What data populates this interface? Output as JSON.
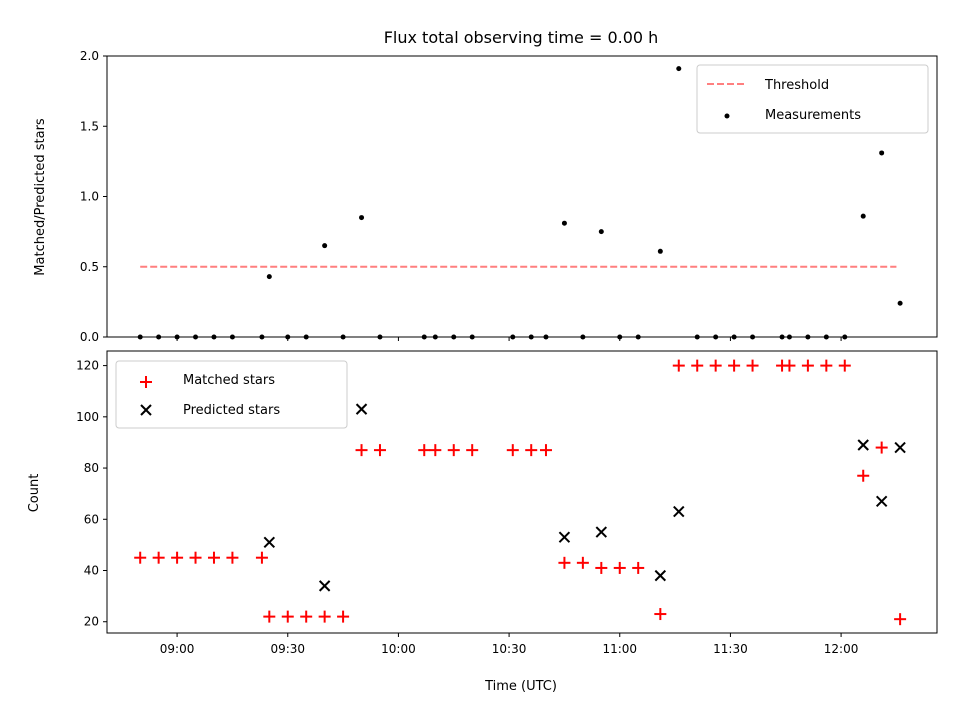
{
  "chart_data": [
    {
      "type": "scatter",
      "title": "Flux total observing time = 0.00 h",
      "xlabel": "",
      "ylabel": "Matched/Predicted stars",
      "ylim": [
        0,
        2.0
      ],
      "yticks": [
        0.0,
        0.5,
        1.0,
        1.5,
        2.0
      ],
      "ytick_labels": [
        "0.0",
        "0.5",
        "1.0",
        "1.5",
        "2.0"
      ],
      "xlim": [
        "08:41",
        "12:26"
      ],
      "xticks": [
        "09:00",
        "09:30",
        "10:00",
        "10:30",
        "11:00",
        "11:30",
        "12:00"
      ],
      "grid": false,
      "legend_position": "top-right",
      "series": [
        {
          "name": "Threshold",
          "kind": "dashed-line",
          "color": "#ff7f7f",
          "x": [
            "08:50",
            "12:15"
          ],
          "y": [
            0.5,
            0.5
          ]
        },
        {
          "name": "Measurements",
          "kind": "points",
          "color": "#000000",
          "x": [
            "08:50",
            "08:55",
            "09:00",
            "09:05",
            "09:10",
            "09:15",
            "09:23",
            "09:25",
            "09:30",
            "09:35",
            "09:40",
            "09:45",
            "09:50",
            "09:55",
            "10:07",
            "10:10",
            "10:15",
            "10:20",
            "10:31",
            "10:36",
            "10:40",
            "10:45",
            "10:50",
            "10:55",
            "11:00",
            "11:05",
            "11:11",
            "11:16",
            "11:21",
            "11:26",
            "11:31",
            "11:36",
            "11:44",
            "11:46",
            "11:51",
            "11:56",
            "12:01",
            "12:06",
            "12:11",
            "12:16"
          ],
          "y": [
            0,
            0,
            0,
            0,
            0,
            0,
            0,
            0.43,
            0,
            0,
            0.65,
            0,
            0.85,
            0,
            0,
            0,
            0,
            0,
            0,
            0,
            0,
            0.81,
            0,
            0.75,
            0,
            0,
            0.61,
            1.91,
            0,
            0,
            0,
            0,
            0,
            0,
            0,
            0,
            0,
            0.86,
            1.31,
            0.24
          ]
        }
      ]
    },
    {
      "type": "scatter",
      "title": "",
      "xlabel": "Time (UTC)",
      "ylabel": "Count",
      "ylim": [
        15.6,
        125.7
      ],
      "yticks": [
        20,
        40,
        60,
        80,
        100,
        120
      ],
      "ytick_labels": [
        "20",
        "40",
        "60",
        "80",
        "100",
        "120"
      ],
      "xlim": [
        "08:41",
        "12:26"
      ],
      "xticks": [
        "09:00",
        "09:30",
        "10:00",
        "10:30",
        "11:00",
        "11:30",
        "12:00"
      ],
      "xtick_labels": [
        "09:00",
        "09:30",
        "10:00",
        "10:30",
        "11:00",
        "11:30",
        "12:00"
      ],
      "grid": false,
      "legend_position": "top-left",
      "series": [
        {
          "name": "Matched stars",
          "marker": "plus",
          "color": "#ff0000",
          "x": [
            "08:50",
            "08:55",
            "09:00",
            "09:05",
            "09:10",
            "09:15",
            "09:23",
            "09:25",
            "09:30",
            "09:35",
            "09:40",
            "09:45",
            "09:50",
            "09:55",
            "10:07",
            "10:10",
            "10:15",
            "10:20",
            "10:31",
            "10:36",
            "10:40",
            "10:45",
            "10:50",
            "10:55",
            "11:00",
            "11:05",
            "11:11",
            "11:16",
            "11:21",
            "11:26",
            "11:31",
            "11:36",
            "11:44",
            "11:46",
            "11:51",
            "11:56",
            "12:01",
            "12:06",
            "12:11",
            "12:16"
          ],
          "y": [
            45,
            45,
            45,
            45,
            45,
            45,
            45,
            22,
            22,
            22,
            22,
            22,
            87,
            87,
            87,
            87,
            87,
            87,
            87,
            87,
            87,
            43,
            43,
            41,
            41,
            41,
            23,
            120,
            120,
            120,
            120,
            120,
            120,
            120,
            120,
            120,
            120,
            77,
            88,
            21
          ]
        },
        {
          "name": "Predicted stars",
          "marker": "x",
          "color": "#000000",
          "x": [
            "09:25",
            "09:40",
            "09:50",
            "10:45",
            "10:55",
            "11:11",
            "11:16",
            "12:06",
            "12:11",
            "12:16"
          ],
          "y": [
            51,
            34,
            103,
            53,
            55,
            38,
            63,
            89,
            67,
            88
          ]
        }
      ]
    }
  ]
}
